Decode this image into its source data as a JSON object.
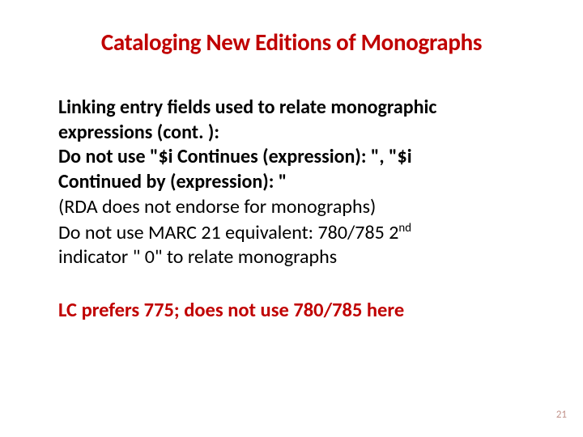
{
  "colors": {
    "title": "#c00000",
    "body": "#000000",
    "footer": "#c00000",
    "pagenum": "#c2948c",
    "background": "#ffffff"
  },
  "title": "Cataloging New Editions of Monographs",
  "body": {
    "l1": "Linking entry fields used to relate monographic",
    "l2": "expressions (cont. ):",
    "l3": "Do not use \"$i Continues (expression): \", \"$i",
    "l4": "Continued by (expression): \"",
    "l5_nw": "(RDA does not endorse for monographs)",
    "l6a_nw": "Do not use MARC 21 equivalent: 780/785 2",
    "l6_sup": "nd",
    "l7_nw": "indicator \" 0\" to relate monographs"
  },
  "footer": "LC prefers  775; does not use 780/785 here",
  "page_number": "21"
}
